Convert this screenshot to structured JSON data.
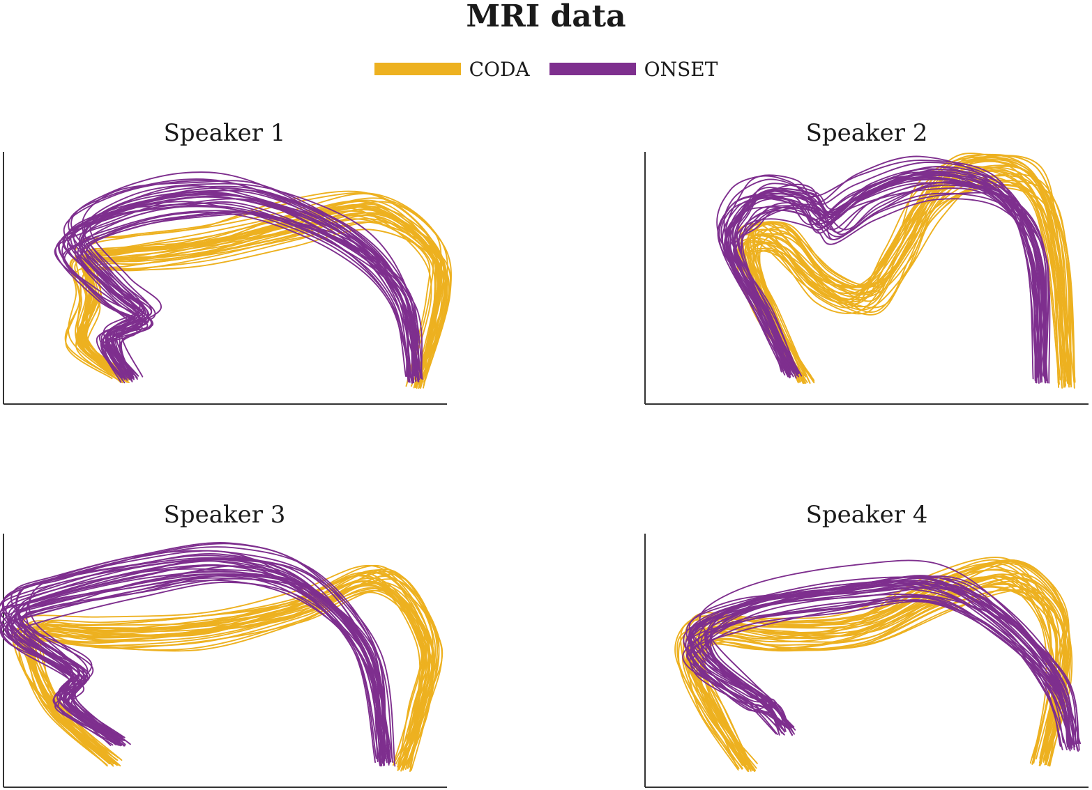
{
  "title": "MRI data",
  "legend": {
    "items": [
      {
        "label": "CODA",
        "color": "#EDB120"
      },
      {
        "label": "ONSET",
        "color": "#7E2F8E"
      }
    ]
  },
  "chart_data": [
    {
      "type": "line",
      "title": "Speaker 1",
      "xlabel": "",
      "ylabel": "",
      "axes": {
        "x_ticks": false,
        "y_ticks": false,
        "grid": false
      },
      "series": [
        {
          "name": "CODA",
          "color": "#EDB120",
          "count": 30,
          "x": [
            0.27,
            0.17,
            0.19,
            0.18,
            0.28,
            0.45,
            0.64,
            0.82,
            0.96,
            0.98,
            0.93
          ],
          "y": [
            0.1,
            0.24,
            0.42,
            0.58,
            0.6,
            0.64,
            0.72,
            0.78,
            0.62,
            0.42,
            0.08
          ]
        },
        {
          "name": "ONSET",
          "color": "#7E2F8E",
          "count": 30,
          "x": [
            0.29,
            0.24,
            0.32,
            0.25,
            0.16,
            0.26,
            0.42,
            0.58,
            0.78,
            0.9,
            0.93
          ],
          "y": [
            0.1,
            0.26,
            0.34,
            0.45,
            0.64,
            0.76,
            0.82,
            0.8,
            0.65,
            0.42,
            0.1
          ]
        }
      ]
    },
    {
      "type": "line",
      "title": "Speaker 2",
      "xlabel": "",
      "ylabel": "",
      "axes": {
        "x_ticks": false,
        "y_ticks": false,
        "grid": false
      },
      "series": [
        {
          "name": "CODA",
          "color": "#EDB120",
          "count": 30,
          "x": [
            0.36,
            0.28,
            0.23,
            0.3,
            0.4,
            0.5,
            0.57,
            0.64,
            0.74,
            0.87,
            0.93,
            0.95
          ],
          "y": [
            0.1,
            0.35,
            0.62,
            0.65,
            0.47,
            0.42,
            0.58,
            0.8,
            0.92,
            0.88,
            0.6,
            0.08
          ]
        },
        {
          "name": "ONSET",
          "color": "#7E2F8E",
          "count": 30,
          "x": [
            0.33,
            0.27,
            0.19,
            0.22,
            0.28,
            0.36,
            0.41,
            0.5,
            0.64,
            0.8,
            0.88,
            0.89
          ],
          "y": [
            0.12,
            0.35,
            0.62,
            0.76,
            0.82,
            0.8,
            0.72,
            0.82,
            0.9,
            0.83,
            0.58,
            0.1
          ]
        }
      ]
    },
    {
      "type": "line",
      "title": "Speaker 3",
      "xlabel": "",
      "ylabel": "",
      "axes": {
        "x_ticks": false,
        "y_ticks": false,
        "grid": false
      },
      "series": [
        {
          "name": "CODA",
          "color": "#EDB120",
          "count": 30,
          "x": [
            0.25,
            0.12,
            0.06,
            0.07,
            0.22,
            0.45,
            0.66,
            0.85,
            0.96,
            0.94,
            0.9
          ],
          "y": [
            0.1,
            0.3,
            0.52,
            0.62,
            0.6,
            0.62,
            0.7,
            0.82,
            0.58,
            0.3,
            0.08
          ]
        },
        {
          "name": "ONSET",
          "color": "#7E2F8E",
          "count": 30,
          "x": [
            0.26,
            0.14,
            0.17,
            0.04,
            0.02,
            0.1,
            0.3,
            0.5,
            0.68,
            0.82,
            0.86
          ],
          "y": [
            0.18,
            0.34,
            0.45,
            0.6,
            0.7,
            0.76,
            0.84,
            0.88,
            0.8,
            0.52,
            0.1
          ]
        }
      ]
    },
    {
      "type": "line",
      "title": "Speaker 4",
      "xlabel": "",
      "ylabel": "",
      "axes": {
        "x_ticks": false,
        "y_ticks": false,
        "grid": false
      },
      "series": [
        {
          "name": "CODA",
          "color": "#EDB120",
          "count": 30,
          "x": [
            0.23,
            0.15,
            0.1,
            0.14,
            0.3,
            0.48,
            0.66,
            0.82,
            0.92,
            0.93,
            0.89
          ],
          "y": [
            0.08,
            0.3,
            0.5,
            0.62,
            0.6,
            0.62,
            0.76,
            0.84,
            0.68,
            0.42,
            0.1
          ]
        },
        {
          "name": "ONSET",
          "color": "#7E2F8E",
          "count": 30,
          "x": [
            0.32,
            0.28,
            0.24,
            0.14,
            0.12,
            0.24,
            0.46,
            0.66,
            0.82,
            0.93,
            0.96
          ],
          "y": [
            0.22,
            0.32,
            0.36,
            0.5,
            0.62,
            0.72,
            0.78,
            0.8,
            0.64,
            0.4,
            0.16
          ]
        }
      ]
    }
  ]
}
